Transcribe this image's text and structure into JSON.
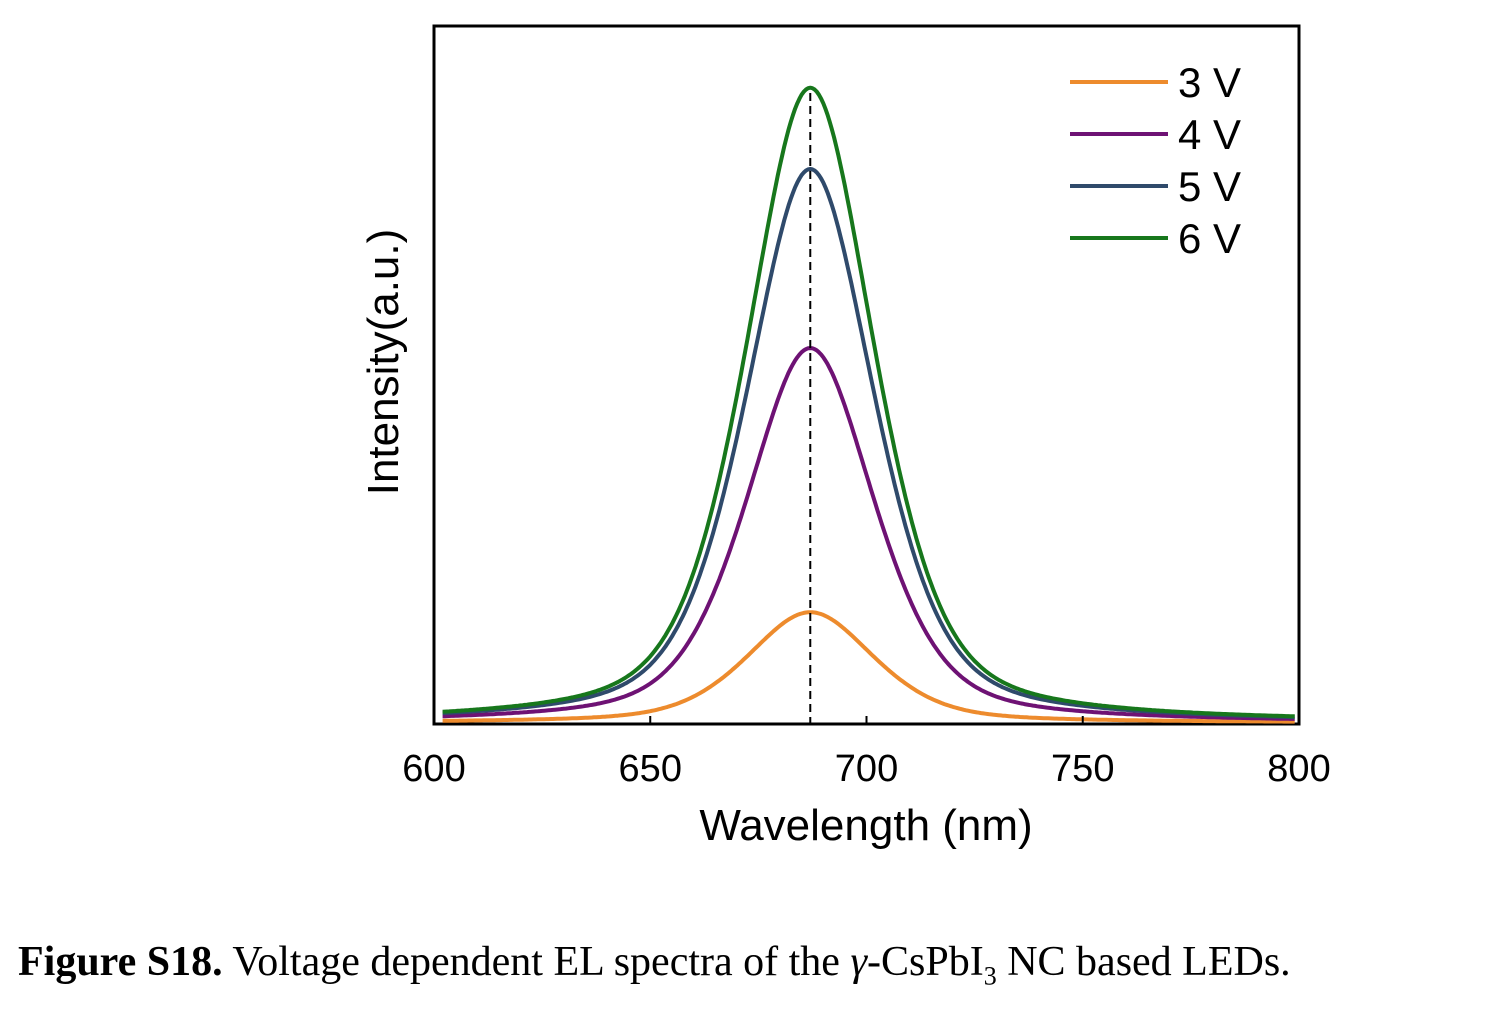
{
  "chart_data": {
    "type": "line",
    "xlabel": "Wavelength (nm)",
    "ylabel": "Intensity(a.u.)",
    "xlim": [
      600,
      800
    ],
    "ylim": [
      0,
      1.0
    ],
    "xticks": [
      "600",
      "650",
      "700",
      "750",
      "800"
    ],
    "yticks": [],
    "grid": false,
    "legend_position": "top-right",
    "reference_line": {
      "x": 687,
      "style": "dashed",
      "color": "#000000"
    },
    "peak_wavelength": 687,
    "series": [
      {
        "name": "3 V",
        "color": "#ED8B2D",
        "peak": 0.174,
        "x": [
          600,
          620,
          640,
          650,
          660,
          670,
          680,
          687,
          695,
          705,
          715,
          725,
          740,
          760,
          800
        ],
        "y": [
          0.002,
          0.004,
          0.012,
          0.025,
          0.048,
          0.09,
          0.15,
          0.174,
          0.155,
          0.1,
          0.055,
          0.028,
          0.011,
          0.004,
          0.002
        ]
      },
      {
        "name": "4 V",
        "color": "#6E1274",
        "peak": 0.59,
        "x": [
          600,
          620,
          640,
          650,
          660,
          670,
          680,
          687,
          695,
          705,
          715,
          725,
          740,
          760,
          800
        ],
        "y": [
          0.003,
          0.01,
          0.04,
          0.085,
          0.165,
          0.31,
          0.51,
          0.59,
          0.53,
          0.34,
          0.18,
          0.09,
          0.035,
          0.01,
          0.003
        ]
      },
      {
        "name": "5 V",
        "color": "#2F4A6B",
        "peak": 0.872,
        "x": [
          600,
          620,
          640,
          650,
          660,
          670,
          680,
          687,
          695,
          705,
          715,
          725,
          740,
          760,
          800
        ],
        "y": [
          0.003,
          0.012,
          0.048,
          0.1,
          0.205,
          0.42,
          0.74,
          0.872,
          0.8,
          0.53,
          0.28,
          0.13,
          0.045,
          0.012,
          0.003
        ]
      },
      {
        "name": "6 V",
        "color": "#17771C",
        "peak": 1.0,
        "x": [
          600,
          620,
          640,
          650,
          660,
          670,
          680,
          687,
          695,
          705,
          715,
          725,
          740,
          760,
          800
        ],
        "y": [
          0.003,
          0.013,
          0.052,
          0.11,
          0.225,
          0.47,
          0.84,
          1.0,
          0.915,
          0.6,
          0.31,
          0.145,
          0.05,
          0.013,
          0.003
        ]
      }
    ]
  },
  "caption": {
    "label": "Figure S18.",
    "text_before": " Voltage dependent EL spectra of the ",
    "gamma": "γ",
    "text_mid": "-CsPbI",
    "subscript": "3",
    "text_after": " NC based LEDs."
  }
}
